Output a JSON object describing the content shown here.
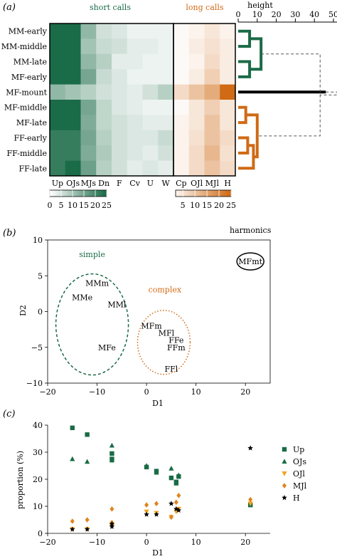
{
  "panel_labels": [
    "(a)",
    "(b)",
    "(c)"
  ],
  "colors": {
    "green": "#1a6b47",
    "orange": "#d06a14",
    "black": "#000000"
  },
  "chart_data": [
    {
      "type": "heatmap",
      "rows": [
        "MM-early",
        "MM-middle",
        "MM-late",
        "MF-early",
        "MF-mount",
        "MF-middle",
        "MF-late",
        "FF-early",
        "FF-middle",
        "FF-late"
      ],
      "columns": [
        "Up",
        "OJs",
        "MJs",
        "Dn",
        "F",
        "Cv",
        "U",
        "W",
        "Cp",
        "OJl",
        "MJl",
        "H"
      ],
      "groups": [
        {
          "label": "short calls",
          "columns": [
            "Up",
            "OJs",
            "MJs",
            "Dn",
            "F",
            "Cv",
            "U",
            "W"
          ],
          "color": "#1a6b47"
        },
        {
          "label": "long calls",
          "columns": [
            "Cp",
            "OJl",
            "MJl",
            "H"
          ],
          "color": "#d06a14"
        }
      ],
      "values": [
        [
          30,
          30,
          12,
          5,
          4,
          2,
          2,
          2,
          1,
          2,
          4,
          2
        ],
        [
          30,
          30,
          10,
          6,
          5,
          3,
          3,
          2,
          1,
          3,
          5,
          3
        ],
        [
          30,
          30,
          12,
          8,
          3,
          3,
          2,
          2,
          1,
          2,
          6,
          3
        ],
        [
          30,
          30,
          15,
          6,
          4,
          2,
          2,
          2,
          1,
          3,
          8,
          3
        ],
        [
          12,
          10,
          8,
          5,
          4,
          3,
          5,
          8,
          6,
          10,
          14,
          25
        ],
        [
          25,
          28,
          15,
          7,
          4,
          3,
          2,
          2,
          1,
          4,
          8,
          4
        ],
        [
          25,
          25,
          14,
          7,
          5,
          4,
          3,
          3,
          2,
          4,
          10,
          4
        ],
        [
          22,
          22,
          15,
          8,
          5,
          4,
          4,
          6,
          2,
          5,
          10,
          6
        ],
        [
          22,
          22,
          14,
          9,
          5,
          4,
          3,
          5,
          2,
          6,
          12,
          5
        ],
        [
          22,
          28,
          16,
          8,
          5,
          3,
          4,
          3,
          2,
          6,
          10,
          6
        ]
      ],
      "colorbars": [
        {
          "ticks": [
            "0",
            "5",
            "10",
            "15",
            "20",
            "25"
          ],
          "color": "#1a6b47"
        },
        {
          "ticks": [
            "5",
            "10",
            "15",
            "20",
            "25"
          ],
          "color": "#d06a14"
        }
      ],
      "dendrogram": {
        "axis_label": "height",
        "ticks": [
          0,
          10,
          20,
          30,
          40,
          50
        ],
        "merges": [
          {
            "members": [
              "MM-early",
              "MM-middle"
            ],
            "height": 6
          },
          {
            "members": [
              "MM-late",
              "MF-early"
            ],
            "height": 6
          },
          {
            "members": [
              "MM-early",
              "MM-middle",
              "MM-late",
              "MF-early"
            ],
            "height": 12
          },
          {
            "members": [
              "FF-early",
              "FF-middle"
            ],
            "height": 5
          },
          {
            "members": [
              "FF-early",
              "FF-middle",
              "FF-late"
            ],
            "height": 8
          },
          {
            "members": [
              "MF-middle",
              "MF-late"
            ],
            "height": 4
          },
          {
            "members": [
              "MF-middle",
              "MF-late",
              "FF-early",
              "FF-middle",
              "FF-late"
            ],
            "height": 10
          },
          {
            "members": [
              "MF-mount"
            ],
            "height": 46
          },
          {
            "members": [
              "MM-early",
              "MM-middle",
              "MM-late",
              "MF-early",
              "MF-middle",
              "MF-late",
              "FF-early",
              "FF-middle",
              "FF-late"
            ],
            "height": 43
          },
          {
            "members": [
              "all"
            ],
            "height": 52
          }
        ]
      }
    },
    {
      "type": "scatter",
      "xlabel": "D1",
      "ylabel": "D2",
      "xlim": [
        -20,
        25
      ],
      "ylim": [
        -10,
        10
      ],
      "xticks": [
        -20,
        -10,
        0,
        10,
        20
      ],
      "yticks": [
        -10,
        -5,
        0,
        5,
        10
      ],
      "points": [
        {
          "label": "MMm",
          "x": -10,
          "y": 4
        },
        {
          "label": "MMe",
          "x": -13,
          "y": 2
        },
        {
          "label": "MMl",
          "x": -6,
          "y": 1
        },
        {
          "label": "MFe",
          "x": -8,
          "y": -5
        },
        {
          "label": "MFm",
          "x": 1,
          "y": -2
        },
        {
          "label": "MFl",
          "x": 4,
          "y": -3
        },
        {
          "label": "FFe",
          "x": 6,
          "y": -4
        },
        {
          "label": "FFm",
          "x": 6,
          "y": -5
        },
        {
          "label": "FFl",
          "x": 5,
          "y": -8
        },
        {
          "label": "MFmt",
          "x": 21,
          "y": 7
        }
      ],
      "groups": [
        {
          "label": "simple",
          "color": "#1a6b47"
        },
        {
          "label": "complex",
          "color": "#d06a14"
        },
        {
          "label": "harmonics",
          "color": "#000000"
        }
      ]
    },
    {
      "type": "scatter",
      "xlabel": "D1",
      "ylabel": "proportion (%)",
      "xlim": [
        -20,
        25
      ],
      "ylim": [
        0,
        40
      ],
      "xticks": [
        -20,
        -10,
        0,
        10,
        20
      ],
      "yticks": [
        0,
        10,
        20,
        30,
        40
      ],
      "legend_position": "right",
      "series": [
        {
          "name": "Up",
          "marker": "square",
          "color": "#1a6b47",
          "x": [
            -15,
            -12,
            -7,
            -7,
            0,
            2,
            5,
            6,
            6.5,
            21
          ],
          "y": [
            39,
            36.5,
            29.5,
            27.5,
            24.5,
            23,
            20.5,
            19,
            21,
            10.5
          ]
        },
        {
          "name": "OJs",
          "marker": "triangle-up",
          "color": "#1a6b47",
          "x": [
            -15,
            -12,
            -7,
            -7,
            0,
            2,
            5,
            6,
            6.5,
            21
          ],
          "y": [
            27.5,
            26.5,
            32.5,
            27,
            25,
            22.5,
            24,
            18.5,
            21.5,
            10.5
          ]
        },
        {
          "name": "OJl",
          "marker": "triangle-down",
          "color": "#f3a41f",
          "x": [
            -15,
            -12,
            -7,
            -7,
            0,
            2,
            5,
            6,
            6.5,
            21
          ],
          "y": [
            1.5,
            1.5,
            3,
            2.5,
            8,
            7.5,
            6,
            8,
            9,
            11
          ]
        },
        {
          "name": "MJl",
          "marker": "diamond",
          "color": "#e0831e",
          "x": [
            -15,
            -12,
            -7,
            -7,
            0,
            2,
            5,
            6,
            6.5,
            21
          ],
          "y": [
            4.5,
            5,
            9,
            4,
            10.5,
            11,
            6,
            11.5,
            14,
            12.5
          ]
        },
        {
          "name": "H",
          "marker": "star",
          "color": "#000000",
          "x": [
            -15,
            -12,
            -7,
            -7,
            0,
            2,
            5,
            6,
            6.5,
            21
          ],
          "y": [
            1.5,
            1.5,
            2.5,
            3.5,
            7,
            7,
            11,
            9,
            8.5,
            31.5
          ]
        }
      ]
    }
  ]
}
